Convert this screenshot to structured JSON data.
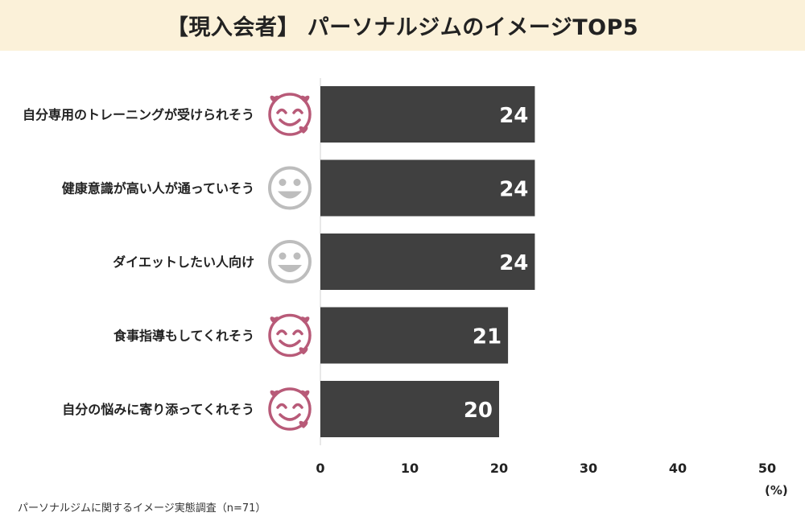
{
  "title": "【現入会者】 パーソナルジムのイメージTOP5",
  "unit": "(%)",
  "source": "パーソナルジムに関するイメージ実態調査（n=71）",
  "colors": {
    "bar": "#404040",
    "title_bg": "#fbf1d9",
    "love_face": "#b85a78",
    "smile_face": "#bdbdbd"
  },
  "chart_data": {
    "type": "bar",
    "orientation": "horizontal",
    "categories": [
      "自分専用のトレーニングが受けられそう",
      "健康意識が高い人が通っていそう",
      "ダイエットしたい人向け",
      "食事指導もしてくれそう",
      "自分の悩みに寄り添ってくれそう"
    ],
    "values": [
      24,
      24,
      24,
      21,
      20
    ],
    "icons": [
      "love-face-icon",
      "smile-face-icon",
      "smile-face-icon",
      "love-face-icon",
      "love-face-icon"
    ],
    "xlim": [
      0,
      50
    ],
    "xticks": [
      0,
      10,
      20,
      30,
      40,
      50
    ],
    "grid": false
  }
}
